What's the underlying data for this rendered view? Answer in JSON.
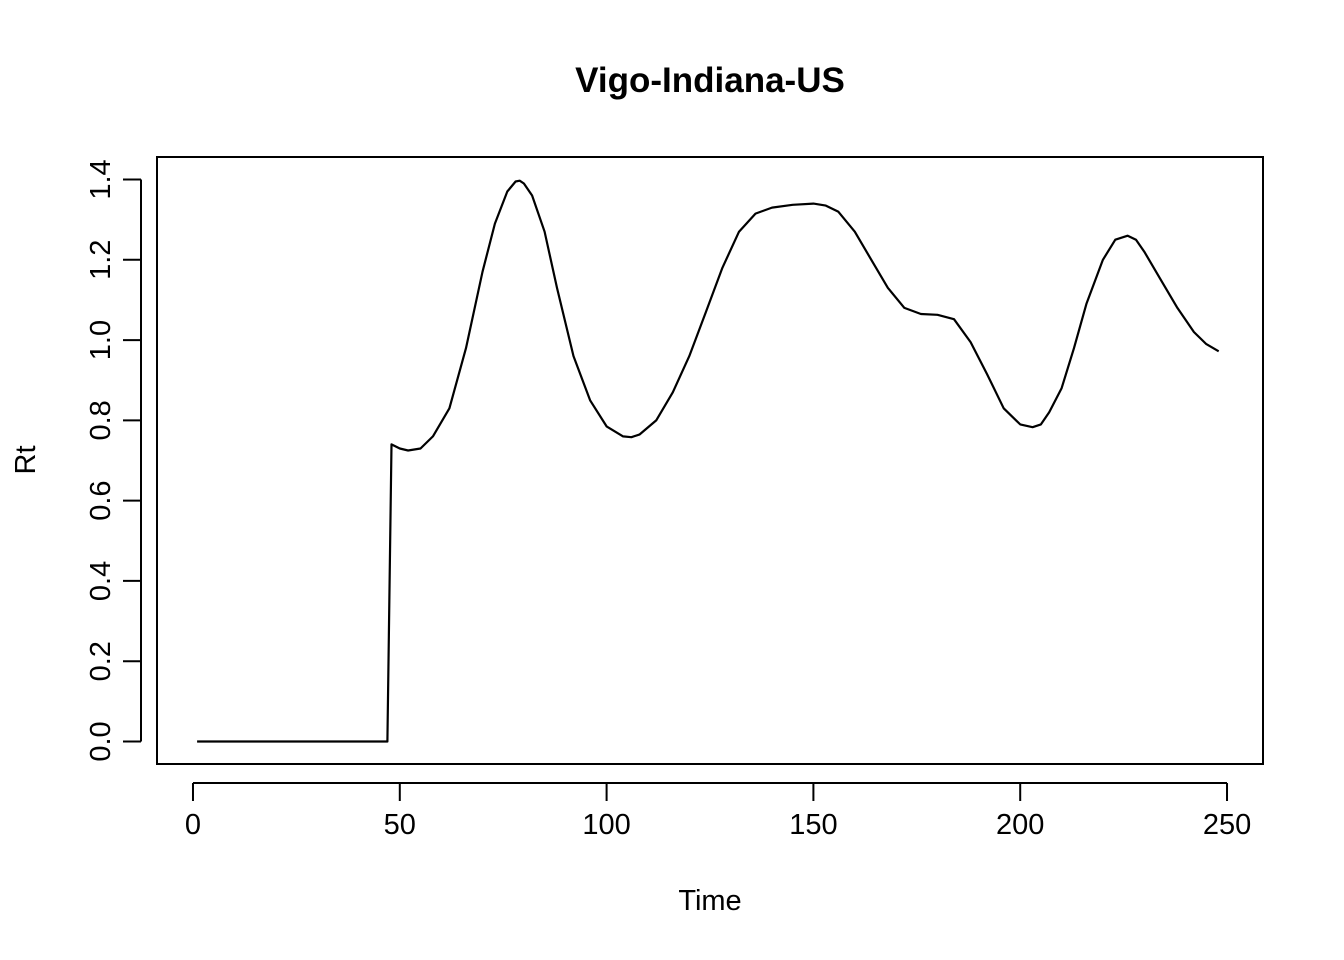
{
  "chart_data": {
    "type": "line",
    "title": "Vigo-Indiana-US",
    "xlabel": "Time",
    "ylabel": "Rt",
    "xlim": [
      -8.7,
      258.7
    ],
    "ylim": [
      -0.056,
      1.456
    ],
    "xticks": [
      0,
      50,
      100,
      150,
      200,
      250
    ],
    "yticks": [
      0.0,
      0.2,
      0.4,
      0.6,
      0.8,
      1.0,
      1.2,
      1.4
    ],
    "xtick_labels": [
      "0",
      "50",
      "100",
      "150",
      "200",
      "250"
    ],
    "ytick_labels": [
      "0.0",
      "0.2",
      "0.4",
      "0.6",
      "0.8",
      "1.0",
      "1.2",
      "1.4"
    ],
    "grid": false,
    "legend": "none",
    "color": "#000000",
    "series": [
      {
        "x": [
          1,
          10,
          20,
          30,
          40,
          47,
          48,
          50,
          52,
          55,
          58,
          62,
          66,
          70,
          73,
          76,
          78,
          79,
          80,
          82,
          85,
          88,
          92,
          96,
          100,
          104,
          106,
          108,
          112,
          116,
          120,
          124,
          128,
          132,
          136,
          140,
          145,
          150,
          153,
          156,
          160,
          164,
          168,
          172,
          176,
          180,
          184,
          188,
          192,
          196,
          200,
          203,
          205,
          207,
          210,
          213,
          216,
          220,
          223,
          226,
          228,
          230,
          234,
          238,
          242,
          245,
          248
        ],
        "y": [
          0.0,
          0.0,
          0.0,
          0.0,
          0.0,
          0.0,
          0.74,
          0.73,
          0.725,
          0.73,
          0.76,
          0.83,
          0.98,
          1.17,
          1.29,
          1.37,
          1.395,
          1.397,
          1.39,
          1.36,
          1.27,
          1.13,
          0.96,
          0.85,
          0.785,
          0.76,
          0.758,
          0.765,
          0.8,
          0.87,
          0.96,
          1.07,
          1.18,
          1.27,
          1.315,
          1.33,
          1.337,
          1.34,
          1.335,
          1.32,
          1.27,
          1.2,
          1.13,
          1.08,
          1.065,
          1.063,
          1.052,
          0.995,
          0.915,
          0.83,
          0.79,
          0.783,
          0.79,
          0.82,
          0.88,
          0.98,
          1.09,
          1.2,
          1.25,
          1.26,
          1.25,
          1.22,
          1.15,
          1.08,
          1.02,
          0.99,
          0.972
        ]
      }
    ]
  }
}
